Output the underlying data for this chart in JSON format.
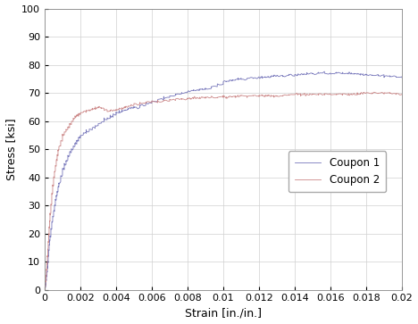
{
  "title": "",
  "xlabel": "Strain [in./in.]",
  "ylabel": "Stress [ksi]",
  "xlim": [
    0,
    0.02
  ],
  "ylim": [
    0,
    100
  ],
  "xticks": [
    0,
    0.002,
    0.004,
    0.006,
    0.008,
    0.01,
    0.012,
    0.014,
    0.016,
    0.018,
    0.02
  ],
  "yticks": [
    0,
    10,
    20,
    30,
    40,
    50,
    60,
    70,
    80,
    90,
    100
  ],
  "coupon1_color": "#7777bb",
  "coupon2_color": "#cc8888",
  "legend_labels": [
    "Coupon 1",
    "Coupon 2"
  ],
  "background_color": "#ffffff",
  "grid_color": "#d0d0d0",
  "figsize": [
    4.68,
    3.63
  ],
  "dpi": 100
}
